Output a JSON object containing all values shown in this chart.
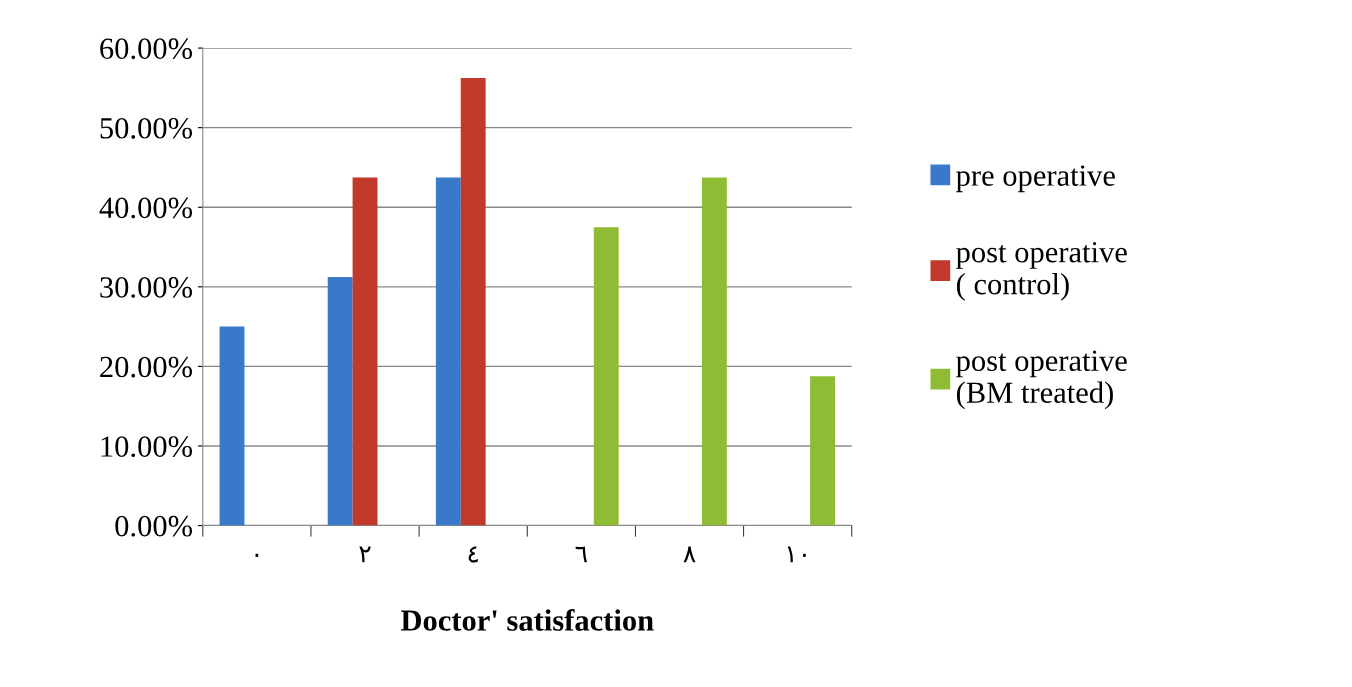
{
  "chart_data": {
    "type": "bar",
    "xlabel": "Doctor' satisfaction",
    "categories": [
      "٠",
      "٢",
      "٤",
      "٦",
      "٨",
      "١٠"
    ],
    "series": [
      {
        "name": "pre operative",
        "color": "#3a78c9",
        "values": [
          25,
          31.25,
          43.75,
          null,
          null,
          null
        ]
      },
      {
        "name": "post operative\n( control)",
        "color": "#c0392b",
        "values": [
          null,
          43.75,
          56.25,
          null,
          null,
          null
        ]
      },
      {
        "name": "post operative\n(BM treated)",
        "color": "#8fbc34",
        "values": [
          null,
          null,
          null,
          37.5,
          43.75,
          18.75
        ]
      }
    ],
    "ylim": [
      0,
      60
    ],
    "yticks": [
      {
        "value": 0,
        "label": "0.00%"
      },
      {
        "value": 10,
        "label": "10.00%"
      },
      {
        "value": 20,
        "label": "20.00%"
      },
      {
        "value": 30,
        "label": "30.00%"
      },
      {
        "value": 40,
        "label": "40.00%"
      },
      {
        "value": 50,
        "label": "50.00%"
      },
      {
        "value": 60,
        "label": "60.00%"
      }
    ],
    "grid": "y",
    "legend": "right"
  }
}
